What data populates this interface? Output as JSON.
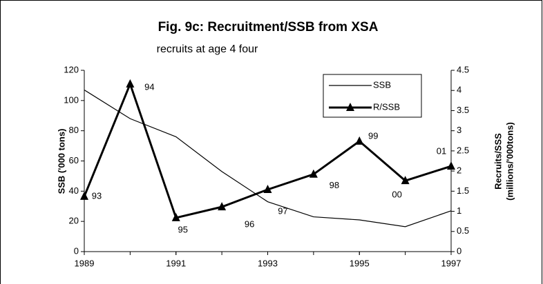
{
  "chart_data": {
    "type": "line",
    "title": "Fig. 9c: Recruitment/SSB from XSA",
    "subtitle": "recruits at age 4 four",
    "y_label": "SSB ('000 tons)",
    "y2_label": [
      "Recruits/SSS",
      "(millions/'000tons)"
    ],
    "x": [
      1989,
      1990,
      1991,
      1992,
      1993,
      1994,
      1995,
      1996,
      1997
    ],
    "xlim": [
      1989,
      1997
    ],
    "xticks": [
      1989,
      1991,
      1993,
      1995,
      1997
    ],
    "ylim": [
      0,
      120
    ],
    "yticks": [
      0,
      20,
      40,
      60,
      80,
      100,
      120
    ],
    "y2lim": [
      0,
      4.5
    ],
    "y2ticks": [
      0,
      0.5,
      1,
      1.5,
      2,
      2.5,
      3,
      3.5,
      4,
      4.5
    ],
    "series": [
      {
        "name": "SSB",
        "color": "#000000",
        "values": [
          107,
          88,
          76,
          53,
          33,
          23,
          21,
          16.5,
          27
        ]
      },
      {
        "name": "R/SSB",
        "color": "#000000",
        "axis": "y2",
        "marker": "triangle",
        "values": [
          1.37,
          4.16,
          0.84,
          1.11,
          1.54,
          1.92,
          2.74,
          1.76,
          2.12
        ],
        "point_labels": [
          "93",
          "94",
          "95",
          "96",
          "97",
          "98",
          "99",
          "00",
          "01"
        ]
      }
    ],
    "legend": "top-right",
    "grid": false
  }
}
